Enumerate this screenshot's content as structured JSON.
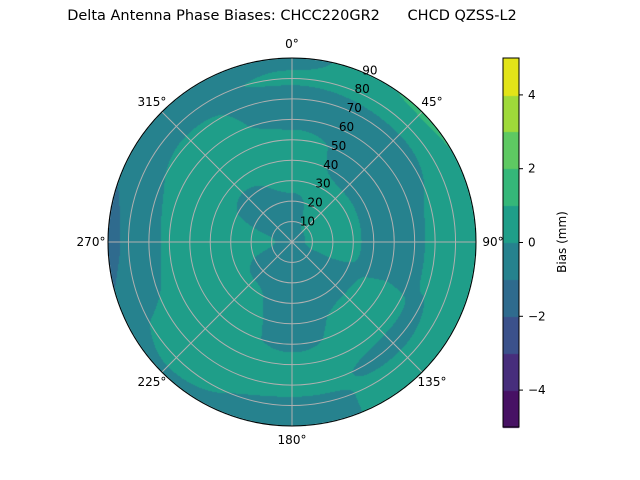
{
  "chart_data": {
    "type": "polar-contour",
    "title": "Delta Antenna Phase Biases: CHCC220GR2      CHCD QZSS-L2",
    "theta_direction": "clockwise",
    "theta_zero": "top",
    "theta_ticks": [
      "0°",
      "45°",
      "90°",
      "135°",
      "180°",
      "225°",
      "270°",
      "315°"
    ],
    "r_ticks": [
      "10",
      "20",
      "30",
      "40",
      "50",
      "60",
      "70",
      "80",
      "90"
    ],
    "r_range": [
      0,
      90
    ],
    "grid": true,
    "colorbar": {
      "label": "Bias (mm)",
      "colormap": "viridis",
      "levels": [
        -5,
        -4,
        -3,
        -2,
        -1,
        0,
        1,
        2,
        3,
        4,
        5
      ],
      "tick_values": [
        -4,
        -2,
        0,
        2,
        4
      ],
      "tick_labels": [
        "−4",
        "−2",
        "0",
        "2",
        "4"
      ],
      "colors": [
        "#471164",
        "#472e7c",
        "#3b518b",
        "#2f6b8e",
        "#26828e",
        "#1f9e89",
        "#35b779",
        "#5ec962",
        "#9fda3a",
        "#e2e418"
      ]
    },
    "grid_azimuth_deg": [
      0,
      45,
      90,
      135,
      180,
      225,
      270,
      315
    ],
    "grid_zenith_deg": [
      0,
      10,
      20,
      30,
      40,
      50,
      60,
      70,
      80,
      90
    ],
    "bias_mm": [
      [
        -0.5,
        -0.3,
        -0.2,
        0.3,
        0.4,
        0.3,
        -0.3,
        -0.4,
        0.2,
        -0.3
      ],
      [
        -0.5,
        0.2,
        0.4,
        0.3,
        -0.3,
        -0.4,
        -0.4,
        -0.3,
        0.4,
        1.2
      ],
      [
        -0.5,
        0.3,
        0.4,
        0.2,
        -0.3,
        -0.4,
        -0.3,
        0.3,
        0.4,
        0.4
      ],
      [
        -0.5,
        -0.4,
        -0.4,
        -0.3,
        0.2,
        0.4,
        0.2,
        -0.3,
        0.3,
        0.4
      ],
      [
        -0.5,
        -0.4,
        -0.4,
        -0.4,
        -0.3,
        -0.2,
        0.3,
        0.4,
        -0.3,
        -0.4
      ],
      [
        -0.5,
        -0.4,
        -0.3,
        0.2,
        0.4,
        0.4,
        0.4,
        0.4,
        0.3,
        -0.2
      ],
      [
        -0.5,
        0.1,
        0.3,
        0.4,
        0.4,
        0.4,
        0.3,
        -0.4,
        -0.8,
        -1.3
      ],
      [
        -0.5,
        -0.4,
        -0.4,
        -0.2,
        0.3,
        0.4,
        0.4,
        0.2,
        -0.4,
        -0.5
      ]
    ]
  }
}
